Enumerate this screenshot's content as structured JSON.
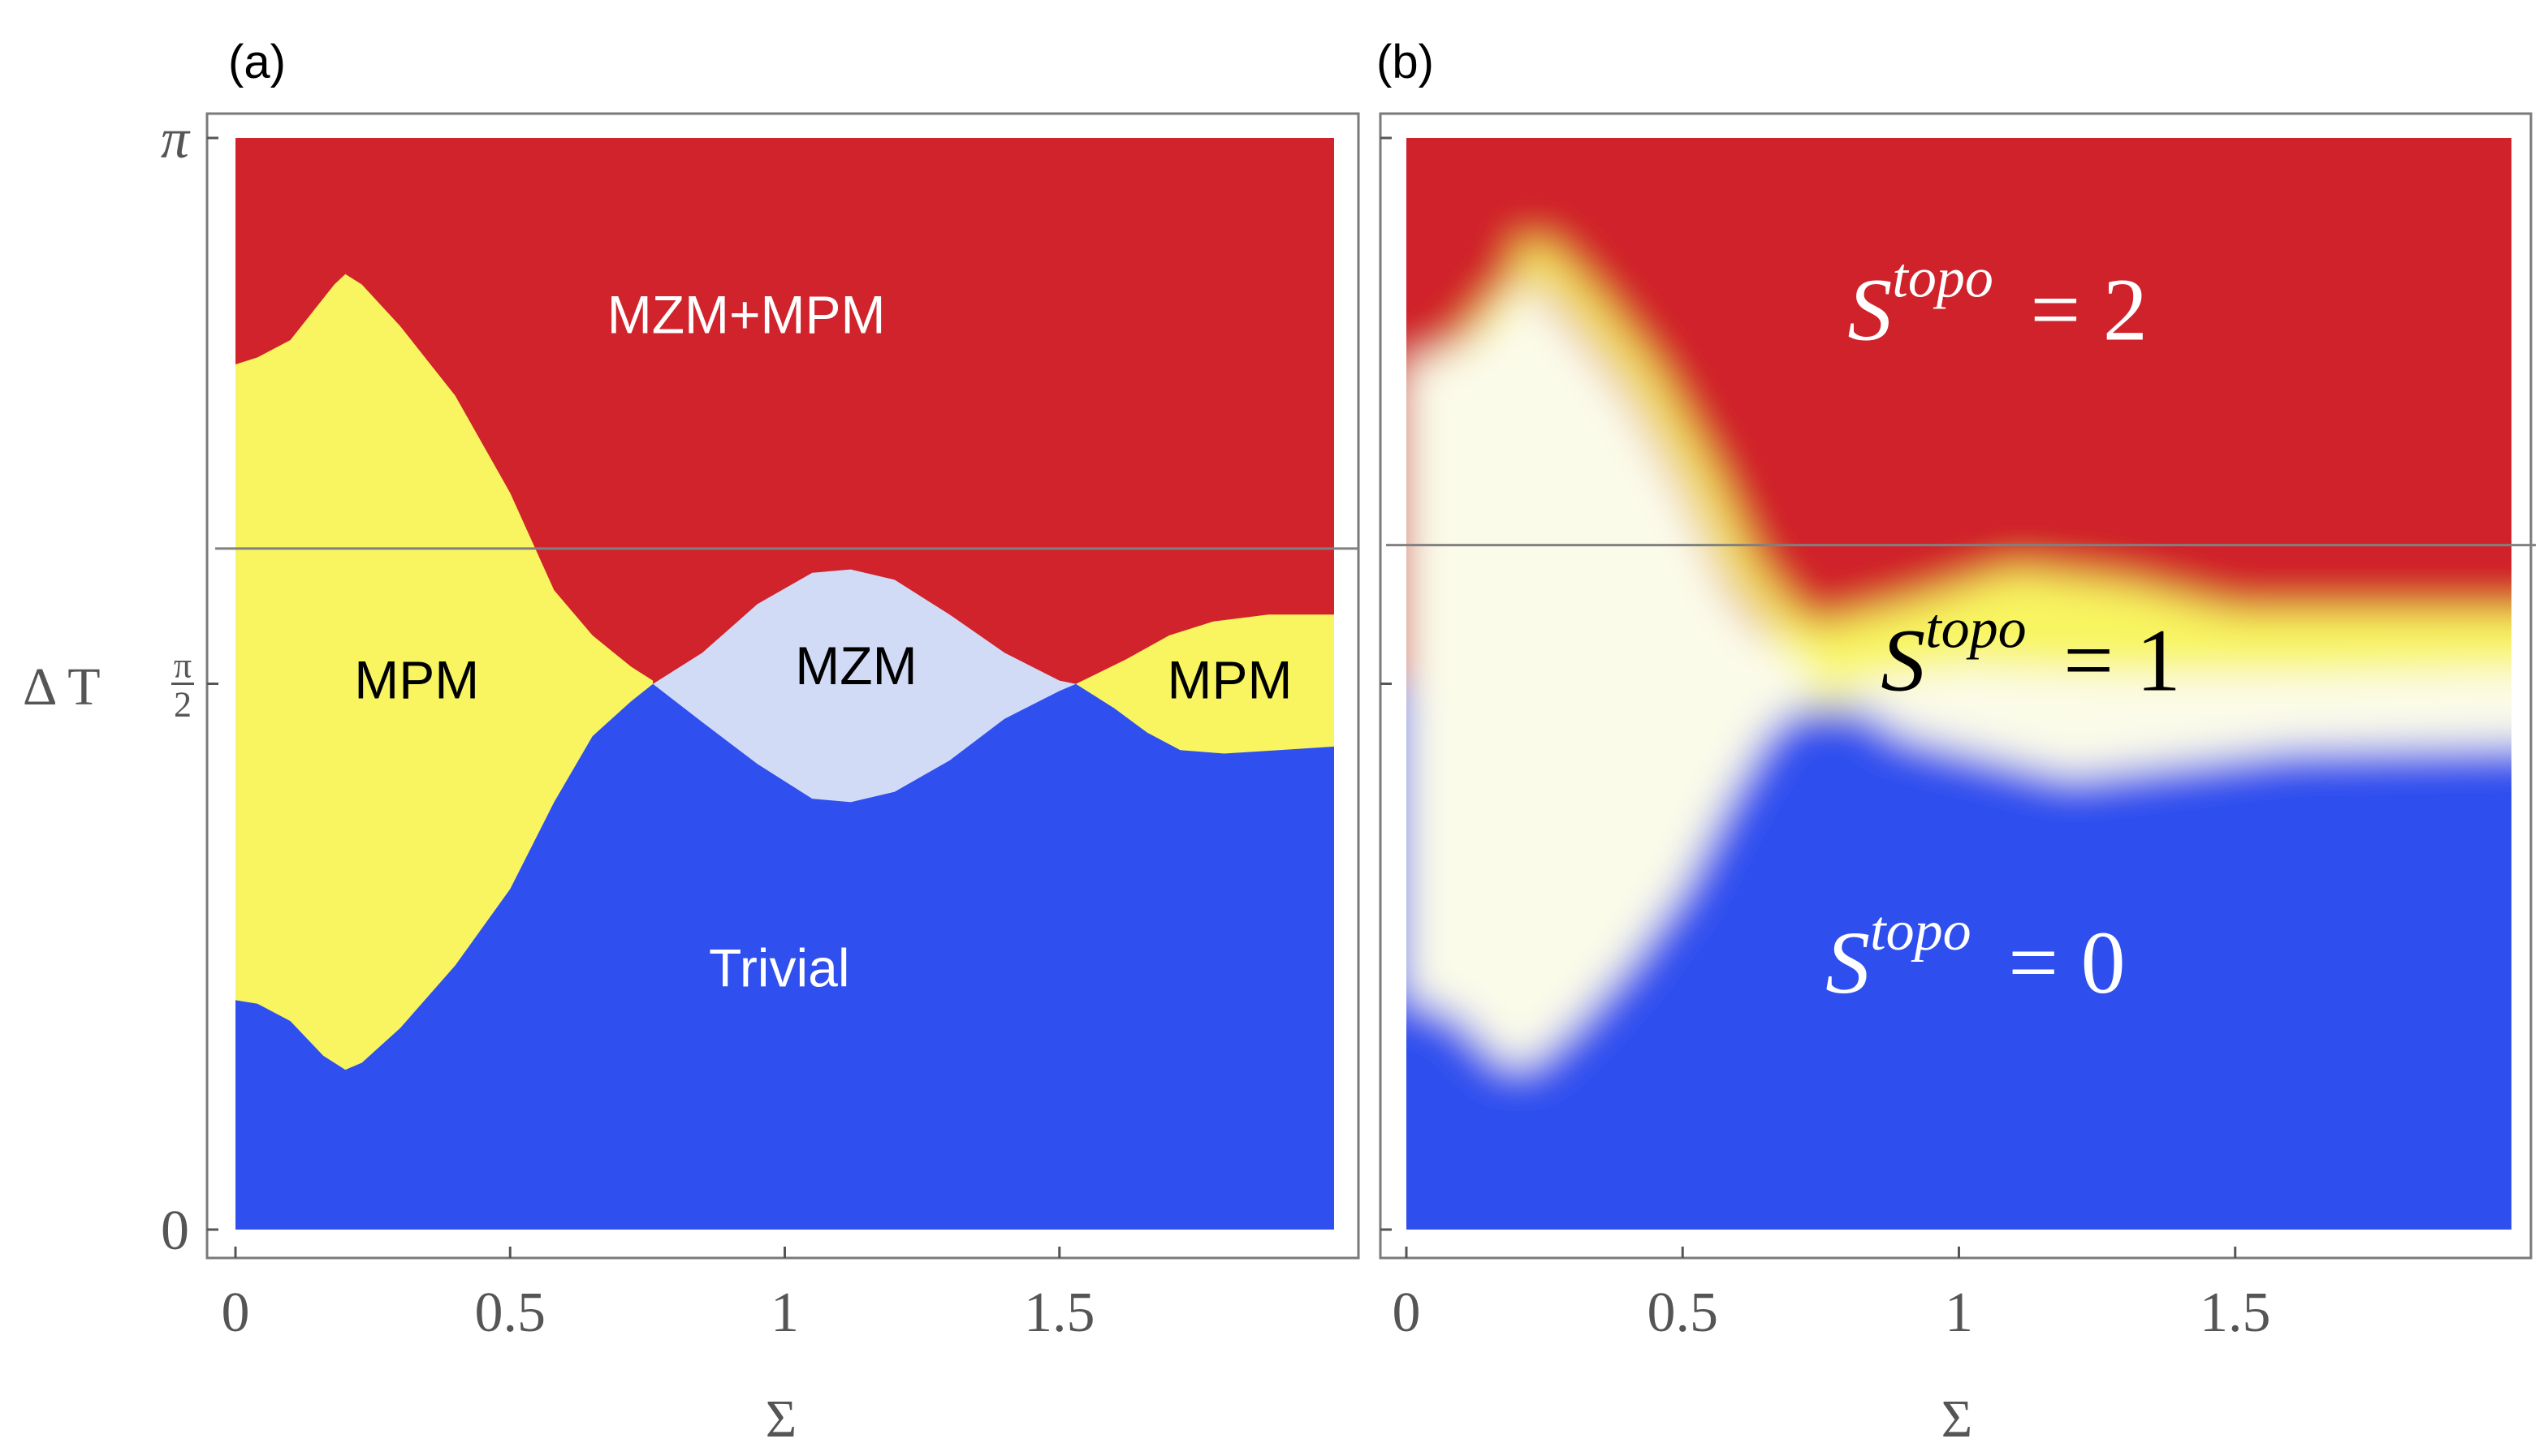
{
  "colors": {
    "red": "#d0232b",
    "yellow": "#f8f561",
    "lavender": "#d2dbf6",
    "blue": "#2f4fee",
    "cream": "#fbfbea",
    "frame": "#7a7a7a",
    "guide": "#808080",
    "tick": "#555555",
    "axis_text": "#555555"
  },
  "chart_data": [
    {
      "type": "heatmap",
      "panel": "(a)",
      "title": "",
      "xlabel": "Σ",
      "ylabel": "Δ T",
      "xlim": [
        0,
        2
      ],
      "ylim": [
        0,
        3.14159
      ],
      "x_ticks": [
        {
          "value": 0,
          "label": "0"
        },
        {
          "value": 0.5,
          "label": "0.5"
        },
        {
          "value": 1,
          "label": "1"
        },
        {
          "value": 1.5,
          "label": "1.5"
        }
      ],
      "y_ticks": [
        {
          "value": 0,
          "label": "0"
        },
        {
          "value": 1.5708,
          "label_num": "π",
          "label_den": "2"
        },
        {
          "value": 3.14159,
          "label": "π"
        }
      ],
      "guide_line_y": 1.96,
      "regions": [
        {
          "name": "MZM+MPM",
          "label": "MZM+MPM",
          "color": "red",
          "label_pos": [
            0.93,
            2.62
          ]
        },
        {
          "name": "MPM-left",
          "label": "MPM",
          "color": "yellow",
          "label_pos": [
            0.33,
            1.57
          ]
        },
        {
          "name": "MZM",
          "label": "MZM",
          "color": "lavender",
          "label_pos": [
            1.13,
            1.61
          ]
        },
        {
          "name": "MPM-right",
          "label": "MPM",
          "color": "yellow",
          "label_pos": [
            1.81,
            1.57
          ]
        },
        {
          "name": "Trivial",
          "label": "Trivial",
          "color": "blue",
          "label_pos": [
            0.99,
            0.74
          ]
        }
      ],
      "boundaries": {
        "upper_yellow_red": [
          [
            0,
            2.49
          ],
          [
            0.04,
            2.51
          ],
          [
            0.1,
            2.56
          ],
          [
            0.16,
            2.68
          ],
          [
            0.18,
            2.72
          ],
          [
            0.2,
            2.75
          ],
          [
            0.23,
            2.72
          ],
          [
            0.3,
            2.6
          ],
          [
            0.4,
            2.4
          ],
          [
            0.5,
            2.12
          ],
          [
            0.58,
            1.84
          ],
          [
            0.65,
            1.71
          ],
          [
            0.72,
            1.62
          ],
          [
            0.76,
            1.58
          ]
        ],
        "lower_yellow_blue": [
          [
            0,
            0.66
          ],
          [
            0.04,
            0.65
          ],
          [
            0.1,
            0.6
          ],
          [
            0.16,
            0.5
          ],
          [
            0.2,
            0.46
          ],
          [
            0.23,
            0.48
          ],
          [
            0.3,
            0.58
          ],
          [
            0.4,
            0.76
          ],
          [
            0.5,
            0.98
          ],
          [
            0.58,
            1.23
          ],
          [
            0.65,
            1.42
          ],
          [
            0.72,
            1.52
          ],
          [
            0.76,
            1.57
          ]
        ],
        "mzm_top": [
          [
            0.76,
            1.57
          ],
          [
            0.85,
            1.66
          ],
          [
            0.95,
            1.8
          ],
          [
            1.05,
            1.89
          ],
          [
            1.12,
            1.9
          ],
          [
            1.2,
            1.87
          ],
          [
            1.3,
            1.77
          ],
          [
            1.4,
            1.66
          ],
          [
            1.5,
            1.58
          ],
          [
            1.53,
            1.57
          ]
        ],
        "mzm_bottom": [
          [
            0.76,
            1.57
          ],
          [
            0.85,
            1.46
          ],
          [
            0.95,
            1.34
          ],
          [
            1.05,
            1.24
          ],
          [
            1.12,
            1.23
          ],
          [
            1.2,
            1.26
          ],
          [
            1.3,
            1.35
          ],
          [
            1.4,
            1.47
          ],
          [
            1.5,
            1.55
          ],
          [
            1.53,
            1.57
          ]
        ],
        "right_mpm_top": [
          [
            1.53,
            1.57
          ],
          [
            1.62,
            1.64
          ],
          [
            1.7,
            1.71
          ],
          [
            1.78,
            1.75
          ],
          [
            1.88,
            1.77
          ],
          [
            2.0,
            1.77
          ]
        ],
        "right_mpm_bottom": [
          [
            1.53,
            1.57
          ],
          [
            1.6,
            1.5
          ],
          [
            1.66,
            1.43
          ],
          [
            1.72,
            1.38
          ],
          [
            1.8,
            1.37
          ],
          [
            1.9,
            1.38
          ],
          [
            2.0,
            1.39
          ]
        ]
      }
    },
    {
      "type": "heatmap",
      "panel": "(b)",
      "title": "",
      "xlabel": "Σ",
      "ylabel": "",
      "xlim": [
        0,
        2
      ],
      "ylim": [
        0,
        3.14159
      ],
      "x_ticks": [
        {
          "value": 0,
          "label": "0"
        },
        {
          "value": 0.5,
          "label": "0.5"
        },
        {
          "value": 1,
          "label": "1"
        },
        {
          "value": 1.5,
          "label": "1.5"
        }
      ],
      "y_ticks": [
        {
          "value": 0,
          "label": ""
        },
        {
          "value": 1.5708,
          "label": ""
        },
        {
          "value": 3.14159,
          "label": ""
        }
      ],
      "guide_line_y": 1.97,
      "colorscale": [
        "blue",
        "cream",
        "yellow",
        "red"
      ],
      "annotations": [
        {
          "name": "stopo-2",
          "base": "S",
          "sup": "topo",
          "eq": "= 2",
          "color": "#ffffff",
          "pos": [
            1.07,
            2.62
          ]
        },
        {
          "name": "stopo-1",
          "base": "S",
          "sup": "topo",
          "eq": "= 1",
          "color": "#000000",
          "pos": [
            1.13,
            1.61
          ]
        },
        {
          "name": "stopo-0",
          "base": "S",
          "sup": "topo",
          "eq": "= 0",
          "color": "#ffffff",
          "pos": [
            1.03,
            0.74
          ]
        }
      ]
    }
  ]
}
